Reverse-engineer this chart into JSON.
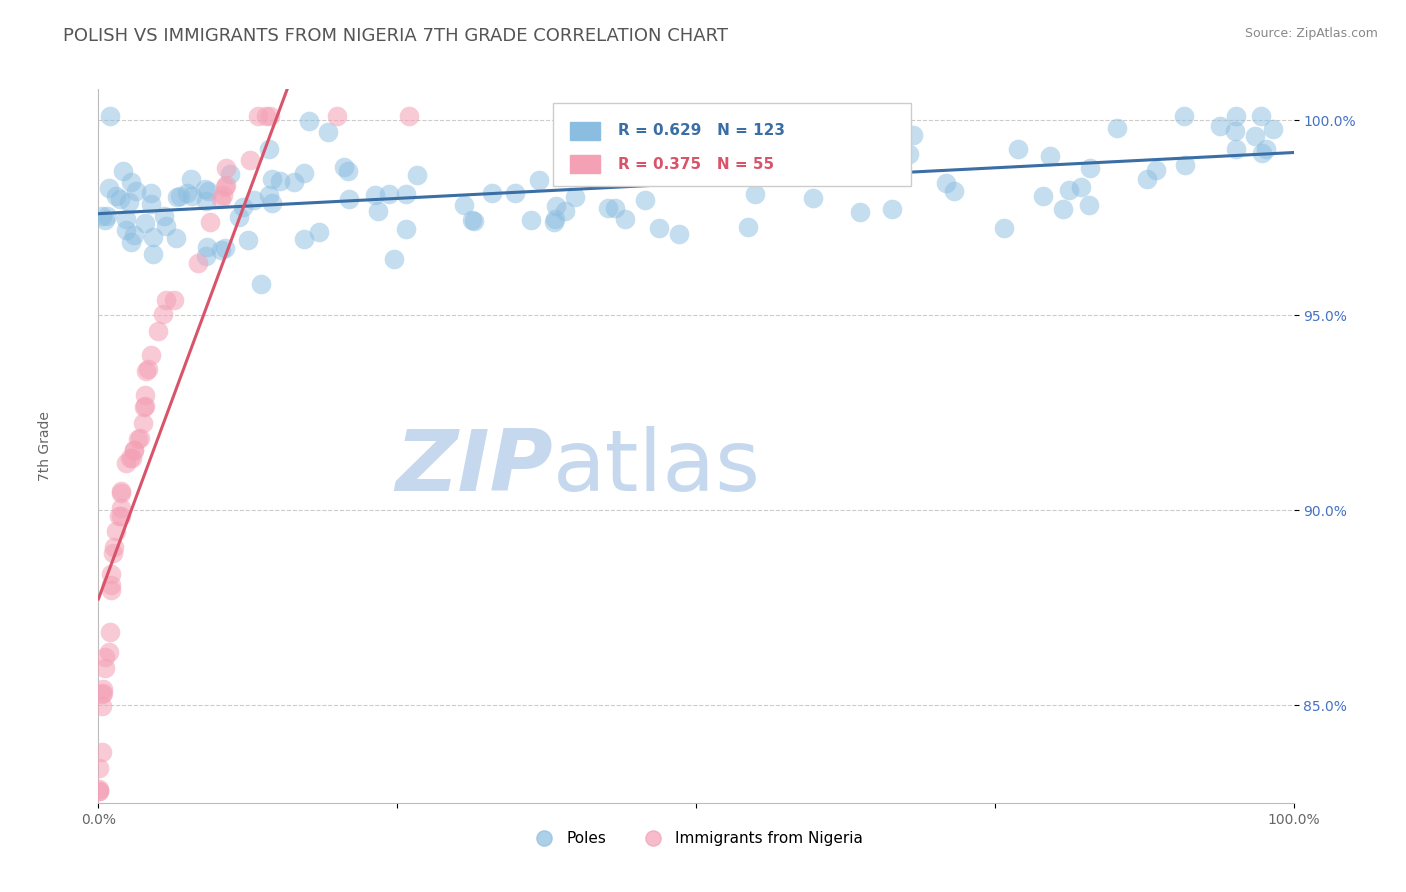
{
  "title": "POLISH VS IMMIGRANTS FROM NIGERIA 7TH GRADE CORRELATION CHART",
  "source": "Source: ZipAtlas.com",
  "ylabel": "7th Grade",
  "xlim": [
    0.0,
    1.0
  ],
  "ylim": [
    0.825,
    1.008
  ],
  "yticks": [
    0.85,
    0.9,
    0.95,
    1.0
  ],
  "ytick_labels": [
    "85.0%",
    "90.0%",
    "95.0%",
    "100.0%"
  ],
  "blue_R": 0.629,
  "blue_N": 123,
  "pink_R": 0.375,
  "pink_N": 55,
  "blue_color": "#8BBDE0",
  "pink_color": "#F4A0B5",
  "blue_line_color": "#3A6EA5",
  "pink_line_color": "#D9546A",
  "legend_label_blue": "Poles",
  "legend_label_pink": "Immigrants from Nigeria",
  "title_fontsize": 13,
  "axis_label_fontsize": 10,
  "tick_fontsize": 10,
  "watermark_zip": "ZIP",
  "watermark_atlas": "atlas",
  "watermark_color_zip": "#C5D8EE",
  "watermark_color_atlas": "#C5D8EE",
  "background_color": "#FFFFFF",
  "grid_color": "#CCCCCC"
}
